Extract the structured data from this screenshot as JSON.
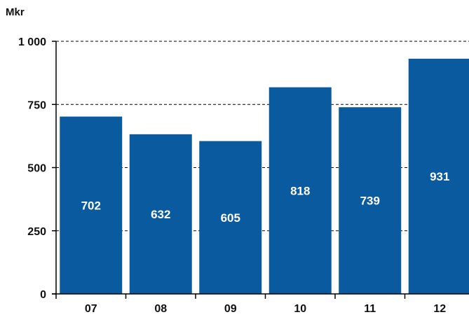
{
  "chart_data": {
    "type": "bar",
    "unit_label": "Mkr",
    "categories": [
      "07",
      "08",
      "09",
      "10",
      "11",
      "12"
    ],
    "values": [
      702,
      632,
      605,
      818,
      739,
      931
    ],
    "y_tick_labels": [
      "0",
      "250",
      "500",
      "750",
      "1 000"
    ],
    "y_ticks": [
      0,
      250,
      500,
      750,
      1000
    ],
    "ylim": [
      0,
      1000
    ],
    "grid": true,
    "legend": "none",
    "bar_color": "#0a5aa0",
    "grid_color": "#000000"
  }
}
